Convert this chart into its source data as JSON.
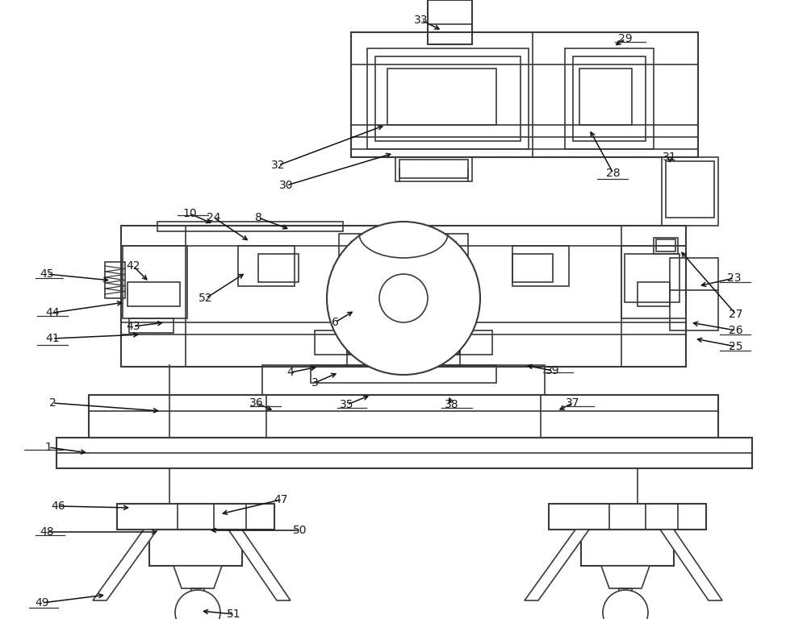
{
  "bg_color": "#ffffff",
  "line_color": "#3a3a3a",
  "dotted_color": "#9999bb",
  "label_color": "#1a1a1a",
  "fig_width": 10.0,
  "fig_height": 7.68,
  "dpi": 100
}
